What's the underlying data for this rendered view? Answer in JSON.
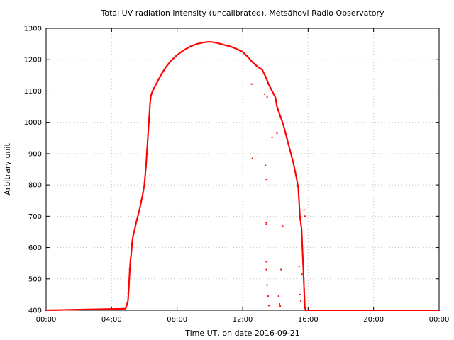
{
  "chart_data": {
    "type": "scatter",
    "title": "Total UV radiation intensity (uncalibrated). Metsähovi Radio Observatory",
    "xlabel": "Time UT, on date 2016-09-21",
    "ylabel": "Arbitrary unit",
    "x_unit": "hours UT",
    "xlim": [
      0,
      24
    ],
    "ylim": [
      400,
      1300
    ],
    "x_ticks": [
      0,
      4,
      8,
      12,
      16,
      20,
      24
    ],
    "x_tick_labels": [
      "00:00",
      "04:00",
      "08:00",
      "12:00",
      "16:00",
      "20:00",
      "00:00"
    ],
    "y_ticks": [
      400,
      500,
      600,
      700,
      800,
      900,
      1000,
      1100,
      1200,
      1300
    ],
    "y_tick_labels": [
      "400",
      "500",
      "600",
      "700",
      "800",
      "900",
      "1000",
      "1100",
      "1200",
      "1300"
    ],
    "grid": true,
    "marker_color": "#ff0000",
    "series": [
      {
        "name": "",
        "points": [
          [
            0.0,
            400
          ],
          [
            4.85,
            405
          ],
          [
            4.9,
            412
          ],
          [
            5.0,
            430
          ],
          [
            5.05,
            470
          ],
          [
            5.1,
            520
          ],
          [
            5.15,
            560
          ],
          [
            5.2,
            580
          ],
          [
            5.25,
            615
          ],
          [
            5.3,
            635
          ],
          [
            5.4,
            655
          ],
          [
            5.5,
            680
          ],
          [
            5.6,
            700
          ],
          [
            5.7,
            720
          ],
          [
            5.8,
            745
          ],
          [
            5.9,
            770
          ],
          [
            6.0,
            800
          ],
          [
            6.05,
            830
          ],
          [
            6.1,
            860
          ],
          [
            6.15,
            900
          ],
          [
            6.2,
            940
          ],
          [
            6.25,
            980
          ],
          [
            6.3,
            1020
          ],
          [
            6.35,
            1060
          ],
          [
            6.4,
            1085
          ],
          [
            6.5,
            1100
          ],
          [
            6.7,
            1120
          ],
          [
            7.0,
            1150
          ],
          [
            7.3,
            1175
          ],
          [
            7.6,
            1195
          ],
          [
            8.0,
            1215
          ],
          [
            8.4,
            1230
          ],
          [
            8.8,
            1242
          ],
          [
            9.2,
            1250
          ],
          [
            9.6,
            1255
          ],
          [
            10.0,
            1257
          ],
          [
            10.4,
            1254
          ],
          [
            10.8,
            1248
          ],
          [
            11.2,
            1243
          ],
          [
            11.6,
            1235
          ],
          [
            12.0,
            1225
          ],
          [
            12.3,
            1210
          ],
          [
            12.6,
            1192
          ],
          [
            12.9,
            1178
          ],
          [
            13.2,
            1168
          ],
          [
            13.45,
            1140
          ],
          [
            13.6,
            1120
          ],
          [
            13.8,
            1100
          ],
          [
            14.0,
            1080
          ],
          [
            14.1,
            1050
          ],
          [
            14.3,
            1020
          ],
          [
            14.5,
            990
          ],
          [
            14.7,
            950
          ],
          [
            14.9,
            910
          ],
          [
            15.1,
            870
          ],
          [
            15.3,
            820
          ],
          [
            15.4,
            790
          ],
          [
            15.5,
            700
          ],
          [
            15.6,
            660
          ],
          [
            15.7,
            540
          ],
          [
            15.8,
            410
          ],
          [
            15.85,
            400
          ],
          [
            24.0,
            400
          ]
        ],
        "outliers": [
          [
            4.7,
            405
          ],
          [
            4.9,
            415
          ],
          [
            5.0,
            455
          ],
          [
            5.05,
            475
          ],
          [
            5.1,
            530
          ],
          [
            12.55,
            1122
          ],
          [
            12.6,
            885
          ],
          [
            13.35,
            1090
          ],
          [
            13.4,
            862
          ],
          [
            13.45,
            818
          ],
          [
            13.45,
            680
          ],
          [
            13.45,
            675
          ],
          [
            13.45,
            555
          ],
          [
            13.45,
            530
          ],
          [
            13.5,
            480
          ],
          [
            13.55,
            445
          ],
          [
            13.6,
            415
          ],
          [
            13.5,
            1080
          ],
          [
            13.8,
            952
          ],
          [
            14.1,
            965
          ],
          [
            14.2,
            445
          ],
          [
            14.25,
            420
          ],
          [
            14.3,
            413
          ],
          [
            14.35,
            530
          ],
          [
            14.45,
            668
          ],
          [
            14.7,
            950
          ],
          [
            15.45,
            540
          ],
          [
            15.5,
            450
          ],
          [
            15.55,
            430
          ],
          [
            15.6,
            515
          ],
          [
            15.7,
            515
          ],
          [
            15.75,
            720
          ],
          [
            15.8,
            700
          ],
          [
            15.6,
            650
          ]
        ]
      }
    ]
  }
}
